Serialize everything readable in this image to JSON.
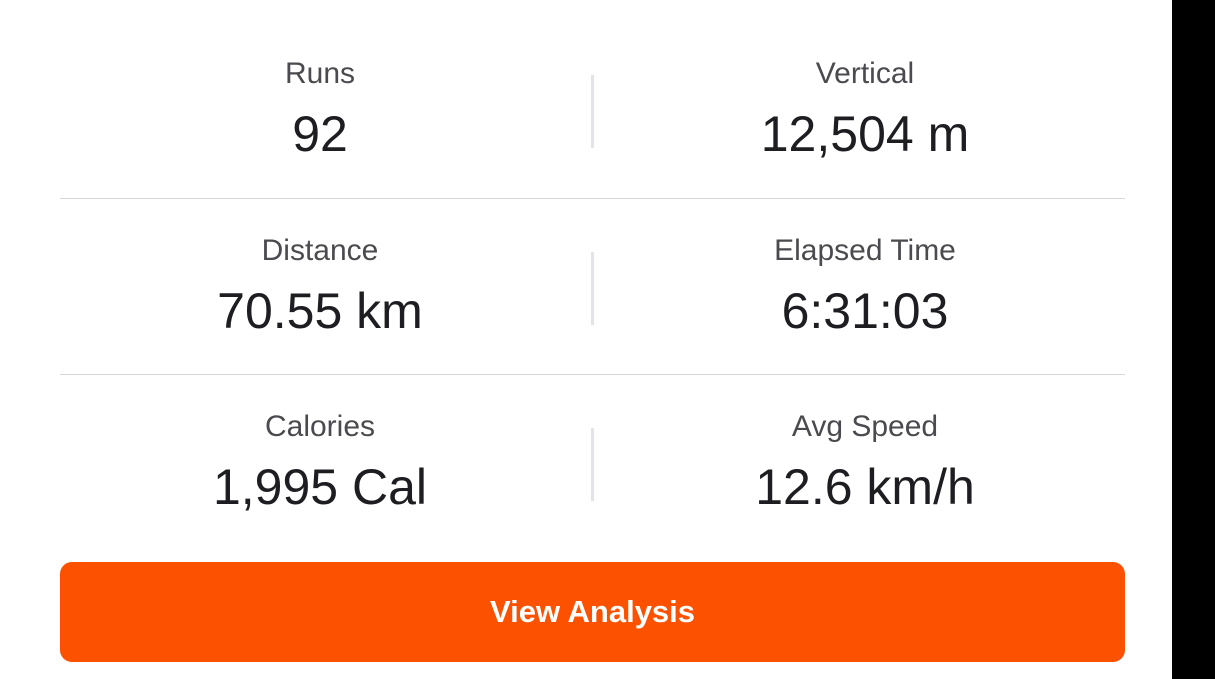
{
  "stats": [
    {
      "left": {
        "label": "Runs",
        "value": "92"
      },
      "right": {
        "label": "Vertical",
        "value": "12,504 m"
      }
    },
    {
      "left": {
        "label": "Distance",
        "value": "70.55 km"
      },
      "right": {
        "label": "Elapsed Time",
        "value": "6:31:03"
      }
    },
    {
      "left": {
        "label": "Calories",
        "value": "1,995 Cal"
      },
      "right": {
        "label": "Avg Speed",
        "value": "12.6 km/h"
      }
    }
  ],
  "button": {
    "label": "View Analysis",
    "color": "#fc5200"
  }
}
